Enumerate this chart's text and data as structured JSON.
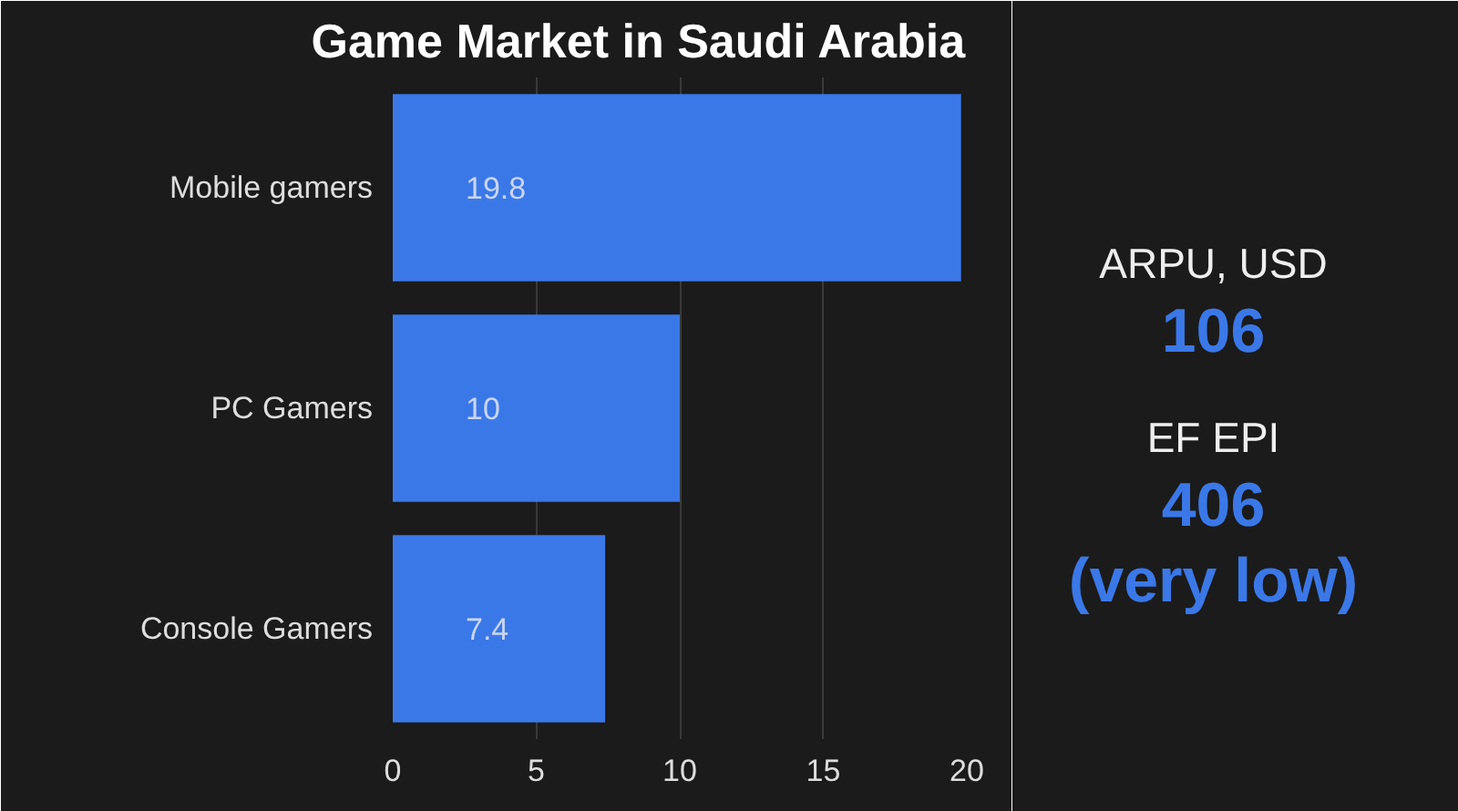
{
  "chart_data": {
    "type": "bar",
    "orientation": "horizontal",
    "title": "Game Market in Saudi Arabia",
    "categories": [
      "Mobile gamers",
      "PC Gamers",
      "Console Gamers"
    ],
    "values": [
      19.8,
      10,
      7.4
    ],
    "color": "#3b78e7",
    "xlim": [
      0,
      20
    ],
    "xticks": [
      0,
      5,
      10,
      15,
      20
    ],
    "grid": "x",
    "data_labels": true,
    "annotations": [
      "ARPU, USD",
      "106",
      "EF EPI",
      "406 (very low)"
    ]
  }
}
